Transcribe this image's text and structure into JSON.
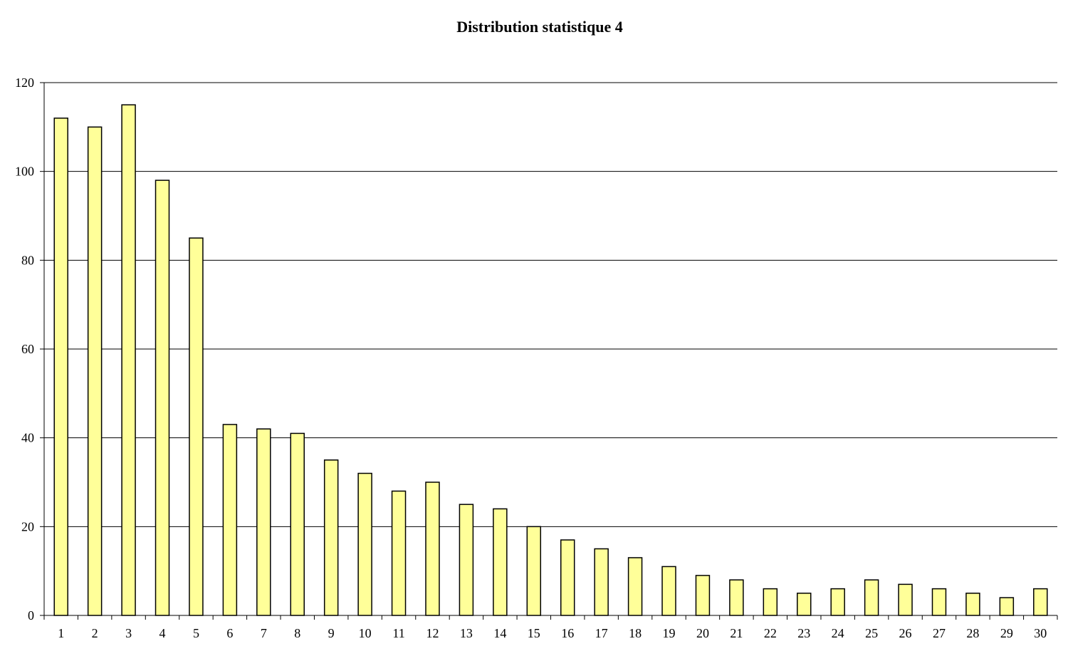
{
  "chart_data": {
    "type": "bar",
    "title": "Distribution statistique 4",
    "xlabel": "",
    "ylabel": "",
    "ylim": [
      0,
      120
    ],
    "yticks": [
      0,
      20,
      40,
      60,
      80,
      100,
      120
    ],
    "grid": true,
    "legend": "none",
    "bar_color": "#ffff99",
    "categories": [
      "1",
      "2",
      "3",
      "4",
      "5",
      "6",
      "7",
      "8",
      "9",
      "10",
      "11",
      "12",
      "13",
      "14",
      "15",
      "16",
      "17",
      "18",
      "19",
      "20",
      "21",
      "22",
      "23",
      "24",
      "25",
      "26",
      "27",
      "28",
      "29",
      "30"
    ],
    "values": [
      112,
      110,
      115,
      98,
      85,
      43,
      42,
      41,
      35,
      32,
      28,
      30,
      25,
      24,
      20,
      17,
      15,
      13,
      11,
      9,
      8,
      6,
      5,
      6,
      8,
      7,
      6,
      5,
      4,
      6
    ]
  }
}
